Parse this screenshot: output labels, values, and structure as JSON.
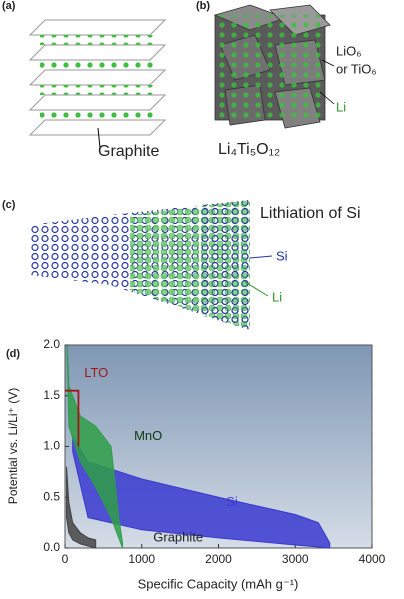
{
  "panels": {
    "a": {
      "label": "(a)",
      "caption": "Graphite"
    },
    "b": {
      "label": "(b)",
      "caption": "Li₄Ti₅O₁₂",
      "site": "LiO₆",
      "site_alt": "or TiO₆",
      "ion": "Li"
    },
    "c": {
      "label": "(c)",
      "title": "Lithiation of Si",
      "host": "Si",
      "ion": "Li"
    },
    "d": {
      "label": "(d)"
    }
  },
  "chart_data": {
    "type": "area",
    "x_label": "Specific Capacity (mAh g⁻¹)",
    "y_label": "Potential vs. Li/Li⁺ (V)",
    "xlim": [
      0,
      4000
    ],
    "xticks": [
      0,
      1000,
      2000,
      3000,
      4000
    ],
    "ylim": [
      0,
      2.0
    ],
    "yticks": [
      {
        "value": 0,
        "label": "0.0"
      },
      {
        "value": 0.5,
        "label": "0.5"
      },
      {
        "value": 1.0,
        "label": "1.0"
      },
      {
        "value": 1.5,
        "label": "1.5"
      },
      {
        "value": 2.0,
        "label": "2.0"
      }
    ],
    "series": [
      {
        "name": "Si",
        "color": "#3a3ad0",
        "x": [
          100,
          300,
          1000,
          2000,
          3000,
          3300,
          3450
        ],
        "values": [
          1.1,
          0.85,
          0.68,
          0.5,
          0.33,
          0.25,
          0.05
        ],
        "lower": [
          0.95,
          0.3,
          0.18,
          0.1,
          0.03,
          0.01,
          0
        ]
      },
      {
        "name": "MnO",
        "color": "#2f9e48",
        "x": [
          30,
          50,
          200,
          400,
          600,
          700,
          750
        ],
        "values": [
          2.0,
          1.6,
          1.3,
          1.2,
          1.0,
          0.3,
          0.05
        ],
        "lower": [
          1.9,
          1.2,
          0.85,
          0.6,
          0.3,
          0.1,
          0
        ]
      },
      {
        "name": "Graphite",
        "color": "#444444",
        "x": [
          20,
          50,
          100,
          200,
          300,
          400
        ],
        "values": [
          0.8,
          0.45,
          0.25,
          0.15,
          0.1,
          0.08
        ],
        "lower": [
          0.3,
          0.15,
          0.08,
          0.04,
          0.02,
          0
        ]
      },
      {
        "name": "LTO",
        "type": "line",
        "color": "#a01818",
        "x": [
          0,
          175,
          175
        ],
        "values": [
          1.55,
          1.55,
          1.0
        ]
      }
    ]
  }
}
